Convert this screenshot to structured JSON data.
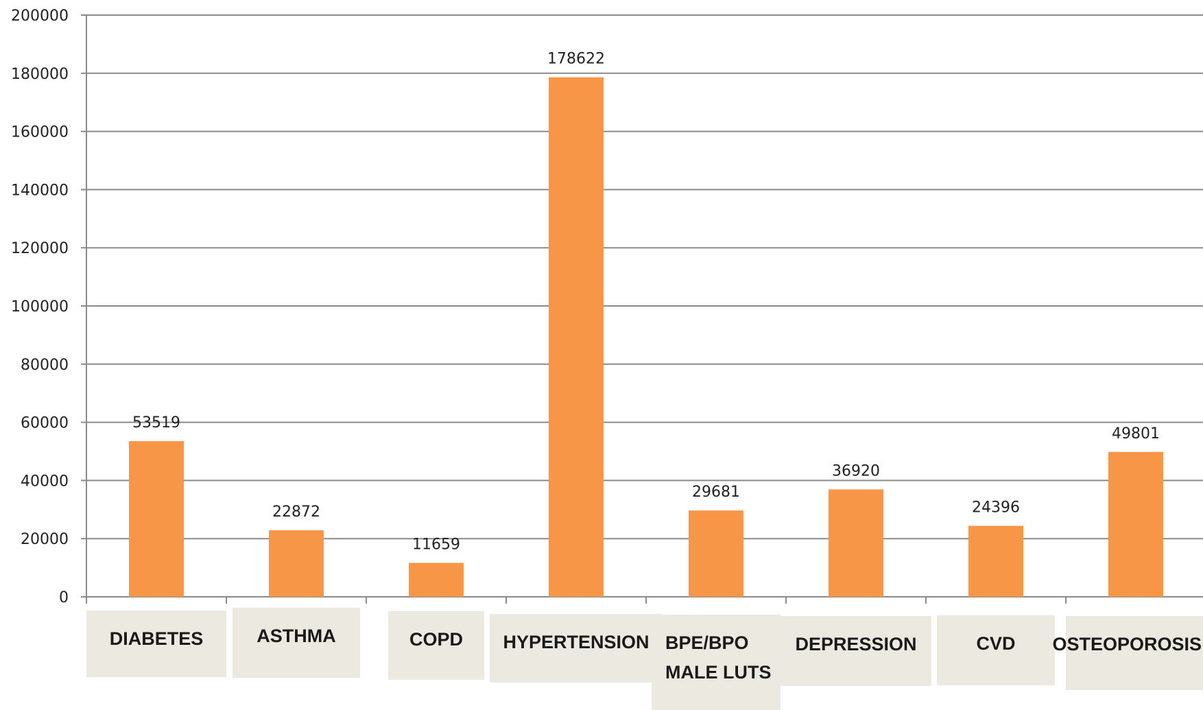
{
  "colors": {
    "bar": "#f79646",
    "category_box": "#eceae0",
    "gridline": "#8a8a8a"
  },
  "chart_data": {
    "type": "bar",
    "title": "",
    "xlabel": "",
    "ylabel": "",
    "ylim": [
      0,
      200000
    ],
    "y_ticks": [
      0,
      20000,
      40000,
      60000,
      80000,
      100000,
      120000,
      140000,
      160000,
      180000,
      200000
    ],
    "grid": true,
    "legend": "none",
    "categories": [
      [
        "DIABETES"
      ],
      [
        "ASTHMA"
      ],
      [
        "COPD"
      ],
      [
        "HYPERTENSION"
      ],
      [
        "BPE/BPO",
        "MALE LUTS"
      ],
      [
        "DEPRESSION"
      ],
      [
        "CVD"
      ],
      [
        "OSTEOPOROSIS"
      ]
    ],
    "values": [
      53519,
      22872,
      11659,
      178622,
      29681,
      36920,
      24396,
      49801
    ],
    "data_labels": [
      "53519",
      "22872",
      "11659",
      "178622",
      "29681",
      "36920",
      "24396",
      "49801"
    ]
  }
}
